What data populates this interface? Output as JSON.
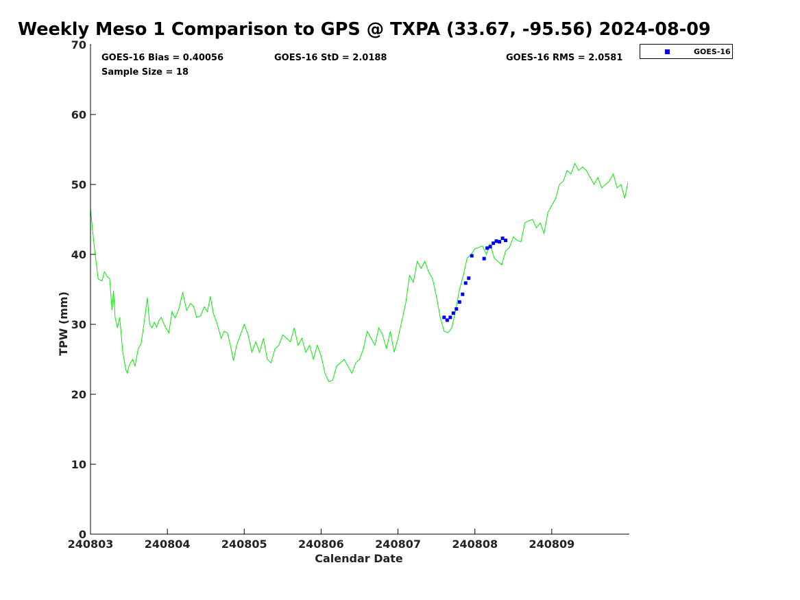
{
  "chart_data": {
    "type": "line",
    "title": "Weekly Meso 1 Comparison to GPS @ TXPA (33.67, -95.56) 2024-08-09",
    "xlabel": "Calendar Date",
    "ylabel": "TPW (mm)",
    "xlim": [
      240803,
      240810
    ],
    "ylim": [
      0,
      70
    ],
    "x_ticks": [
      "240803",
      "240804",
      "240805",
      "240806",
      "240807",
      "240808",
      "240809"
    ],
    "y_ticks": [
      0,
      10,
      20,
      30,
      40,
      50,
      60,
      70
    ],
    "grid": false,
    "legend_position": "top-right-outside",
    "stats": {
      "bias": "GOES-16 Bias = 0.40056",
      "std": "GOES-16 StD = 2.0188",
      "rms": "GOES-16 RMS = 2.0581",
      "sample": "Sample Size = 18"
    },
    "series": [
      {
        "kind": "line",
        "color": "#00ee00",
        "x": [
          240803.0,
          240803.05,
          240803.1,
          240803.15,
          240803.18,
          240803.22,
          240803.25,
          240803.28,
          240803.3,
          240803.32,
          240803.35,
          240803.38,
          240803.42,
          240803.46,
          240803.48,
          240803.5,
          240803.52,
          240803.55,
          240803.58,
          240803.62,
          240803.66,
          240803.7,
          240803.74,
          240803.77,
          240803.8,
          240803.83,
          240803.86,
          240803.89,
          240803.92,
          240803.95,
          240803.98,
          240804.02,
          240804.06,
          240804.1,
          240804.15,
          240804.2,
          240804.25,
          240804.3,
          240804.34,
          240804.38,
          240804.43,
          240804.48,
          240804.52,
          240804.56,
          240804.6,
          240804.65,
          240804.7,
          240804.74,
          240804.78,
          240804.82,
          240804.86,
          240804.9,
          240804.95,
          240805.0,
          240805.05,
          240805.1,
          240805.15,
          240805.2,
          240805.25,
          240805.3,
          240805.35,
          240805.4,
          240805.45,
          240805.5,
          240805.55,
          240805.6,
          240805.65,
          240805.7,
          240805.75,
          240805.8,
          240805.85,
          240805.9,
          240805.95,
          240806.0,
          240806.05,
          240806.1,
          240806.15,
          240806.2,
          240806.25,
          240806.3,
          240806.35,
          240806.4,
          240806.45,
          240806.5,
          240806.55,
          240806.6,
          240806.65,
          240806.7,
          240806.75,
          240806.8,
          240806.85,
          240806.9,
          240806.95,
          240807.0,
          240807.05,
          240807.1,
          240807.15,
          240807.2,
          240807.25,
          240807.3,
          240807.35,
          240807.4,
          240807.45,
          240807.5,
          240807.55,
          240807.6,
          240807.65,
          240807.7,
          240807.75,
          240807.8,
          240807.85,
          240807.9,
          240807.95,
          240808.0,
          240808.05,
          240808.1,
          240808.15,
          240808.2,
          240808.25,
          240808.3,
          240808.35,
          240808.4,
          240808.45,
          240808.5,
          240808.55,
          240808.6,
          240808.65,
          240808.7,
          240808.75,
          240808.8,
          240808.85,
          240808.9,
          240808.95,
          240809.0,
          240809.05,
          240809.1,
          240809.15,
          240809.2,
          240809.25,
          240809.3,
          240809.35,
          240809.4,
          240809.45,
          240809.5,
          240809.55,
          240809.6,
          240809.65,
          240809.7,
          240809.75,
          240809.8,
          240809.85,
          240809.9,
          240809.95,
          240810.0
        ],
        "y": [
          46.5,
          41.0,
          36.5,
          36.2,
          37.5,
          36.8,
          36.5,
          32.0,
          34.8,
          31.0,
          29.5,
          31.0,
          26.0,
          23.5,
          23.0,
          24.0,
          24.5,
          25.0,
          24.0,
          26.5,
          27.3,
          30.5,
          33.8,
          30.0,
          29.5,
          30.3,
          29.6,
          30.5,
          31.0,
          30.2,
          29.5,
          28.8,
          31.8,
          30.9,
          32.2,
          34.6,
          32.0,
          33.0,
          32.6,
          31.0,
          31.2,
          32.5,
          31.8,
          34.0,
          31.5,
          30.0,
          28.0,
          29.0,
          28.8,
          27.0,
          24.8,
          27.0,
          28.5,
          30.0,
          28.5,
          26.0,
          27.5,
          26.0,
          28.0,
          25.0,
          24.5,
          26.5,
          27.0,
          28.5,
          28.0,
          27.5,
          29.5,
          27.0,
          28.0,
          26.0,
          27.0,
          25.0,
          27.0,
          25.5,
          23.0,
          21.8,
          22.0,
          24.0,
          24.5,
          25.0,
          24.0,
          23.0,
          24.5,
          25.0,
          26.5,
          29.0,
          28.0,
          27.0,
          29.5,
          28.5,
          26.5,
          29.0,
          26.0,
          28.0,
          30.5,
          33.0,
          37.0,
          36.0,
          39.0,
          38.0,
          39.0,
          37.5,
          36.5,
          34.0,
          31.0,
          29.0,
          28.8,
          29.5,
          32.0,
          35.0,
          37.0,
          39.5,
          40.0,
          40.8,
          41.0,
          41.2,
          40.0,
          41.5,
          39.5,
          39.0,
          38.5,
          40.5,
          41.0,
          42.5,
          42.0,
          41.8,
          44.5,
          44.8,
          45.0,
          43.8,
          44.5,
          43.0,
          46.0,
          47.0,
          48.0,
          50.0,
          50.5,
          52.0,
          51.5,
          53.0,
          52.0,
          52.5,
          52.0,
          51.0,
          50.0,
          51.0,
          49.5,
          50.0,
          50.5,
          51.5,
          49.5,
          50.0,
          48.0,
          50.8
        ]
      },
      {
        "kind": "scatter",
        "name": "GOES-16",
        "color": "#0000ff",
        "x": [
          240807.6,
          240807.64,
          240807.68,
          240807.72,
          240807.76,
          240807.8,
          240807.84,
          240807.88,
          240807.92,
          240807.96,
          240808.12,
          240808.16,
          240808.2,
          240808.24,
          240808.28,
          240808.32,
          240808.36,
          240808.4
        ],
        "y": [
          31.0,
          30.6,
          31.0,
          31.6,
          32.2,
          33.2,
          34.3,
          35.9,
          36.6,
          39.8,
          39.4,
          40.9,
          41.1,
          41.6,
          41.9,
          41.8,
          42.3,
          42.0
        ]
      }
    ]
  }
}
